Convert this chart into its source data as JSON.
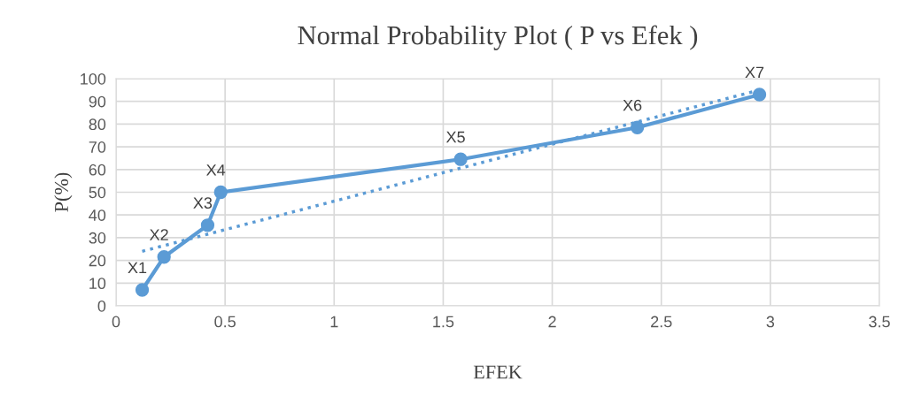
{
  "chart_data": {
    "type": "line",
    "title": "Normal Probability Plot ( P vs Efek )",
    "xlabel": "EFEK",
    "ylabel": "P(%)",
    "series": [
      {
        "x": [
          0.12,
          0.22,
          0.42,
          0.48,
          1.58,
          2.39,
          2.95
        ],
        "values": [
          7,
          21.5,
          35.5,
          50,
          64.5,
          78.5,
          93
        ],
        "color": "#5b9bd5",
        "marker": "circle",
        "line_style": "solid",
        "value_labels": [
          "X1",
          "X2",
          "X3",
          "X4",
          "X5",
          "X6",
          "X7"
        ]
      },
      {
        "x": [
          0.12,
          2.95
        ],
        "values": [
          24,
          95
        ],
        "color": "#5b9bd5",
        "marker": "none",
        "line_style": "dotted"
      }
    ],
    "xlim": [
      0,
      3.5
    ],
    "xticks": [
      0,
      0.5,
      1,
      1.5,
      2,
      2.5,
      3,
      3.5
    ],
    "ylim": [
      0,
      100
    ],
    "yticks": [
      0,
      10,
      20,
      30,
      40,
      50,
      60,
      70,
      80,
      90,
      100
    ],
    "grid": true
  }
}
